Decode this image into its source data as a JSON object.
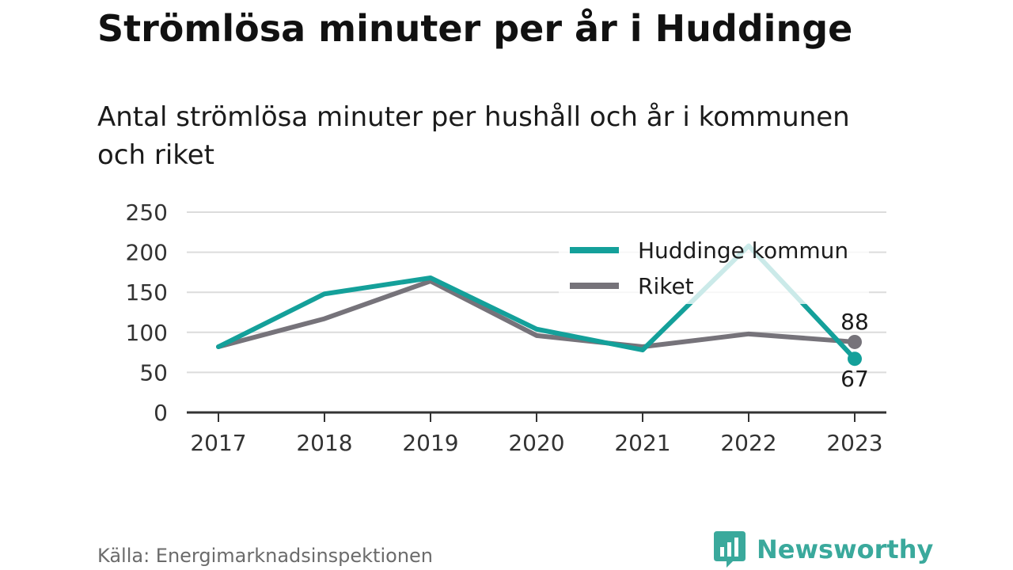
{
  "title": "Strömlösa minuter per år i Huddinge",
  "subtitle": "Antal strömlösa minuter per hushåll och år i kommunen och riket",
  "source": "Källa: Energimarknadsinspektionen",
  "brand": {
    "name": "Newsworthy",
    "color": "#3aa99c",
    "icon": "bar-chart-speech-bubble-icon"
  },
  "chart_data": {
    "type": "line",
    "x": [
      "2017",
      "2018",
      "2019",
      "2020",
      "2021",
      "2022",
      "2023"
    ],
    "series": [
      {
        "name": "Huddinge kommun",
        "color": "#14a09a",
        "values": [
          82,
          148,
          168,
          104,
          78,
          208,
          67
        ]
      },
      {
        "name": "Riket",
        "color": "#76737a",
        "values": [
          82,
          117,
          164,
          96,
          82,
          98,
          88
        ]
      }
    ],
    "end_labels": [
      "67",
      "88"
    ],
    "yticks": [
      "0",
      "50",
      "100",
      "150",
      "200",
      "250"
    ],
    "ylim": [
      0,
      250
    ],
    "grid": true,
    "legend_position": "top-right",
    "xlabel": "",
    "ylabel": ""
  }
}
